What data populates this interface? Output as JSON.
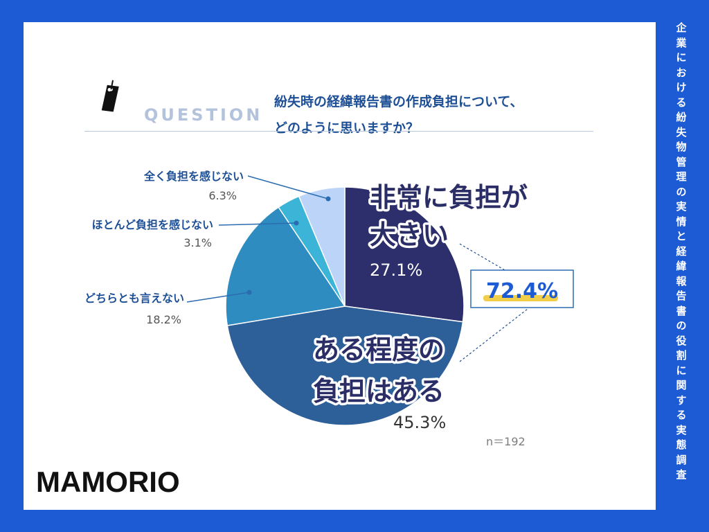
{
  "side_title": "企業における紛失物管理の実情と経緯報告書の役割に関する実態調査",
  "question": {
    "label": "QUESTION",
    "line1": "紛失時の経緯報告書の作成負担について、",
    "line2": "どのように思いますか？"
  },
  "sample_size": "n＝192",
  "logo": "MAMORIO",
  "highlight": {
    "value_label": "72.4%"
  },
  "chart_data": {
    "type": "pie",
    "unit": "%",
    "start_angle_deg": 0,
    "direction": "clockwise",
    "slices": [
      {
        "label_lines": [
          "非常に負担が",
          "大きい"
        ],
        "value": 27.1,
        "value_label": "27.1%",
        "color": "#2c2f6b",
        "label_style": "inside-large"
      },
      {
        "label_lines": [
          "ある程度の",
          "負担はある"
        ],
        "value": 45.3,
        "value_label": "45.3%",
        "color": "#2d5f99",
        "label_style": "inside-large"
      },
      {
        "label_lines": [
          "どちらとも言えない"
        ],
        "value": 18.2,
        "value_label": "18.2%",
        "color": "#2f8cc0",
        "label_style": "outside"
      },
      {
        "label_lines": [
          "ほとんど負担を感じない"
        ],
        "value": 3.1,
        "value_label": "3.1%",
        "color": "#3cb4d8",
        "label_style": "outside"
      },
      {
        "label_lines": [
          "全く負担を感じない"
        ],
        "value": 6.3,
        "value_label": "6.3%",
        "color": "#bcd4f7",
        "label_style": "outside"
      }
    ]
  }
}
